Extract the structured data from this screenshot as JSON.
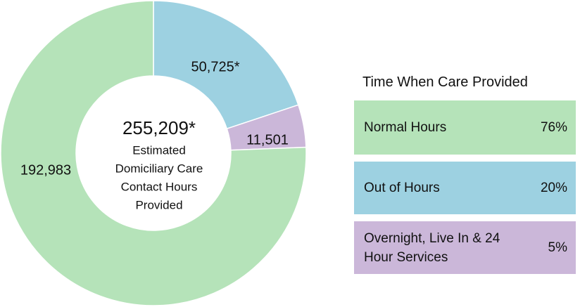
{
  "chart_data": {
    "type": "donut",
    "categories": [
      "Normal Hours",
      "Out of Hours",
      "Overnight, Live In & 24 Hour Services"
    ],
    "values": [
      192983,
      50725,
      11501
    ],
    "value_labels": [
      "192,983",
      "50,725*",
      "11,501"
    ],
    "colors": [
      "#b5e3b9",
      "#9dd1e1",
      "#cbb7d9"
    ],
    "center_value": "255,209*",
    "center_label": [
      "Estimated",
      "Domiciliary Care",
      "Contact Hours",
      "Provided"
    ],
    "legend_title": "Time When Care Provided",
    "shares": [
      "76%",
      "20%",
      "5%"
    ]
  }
}
